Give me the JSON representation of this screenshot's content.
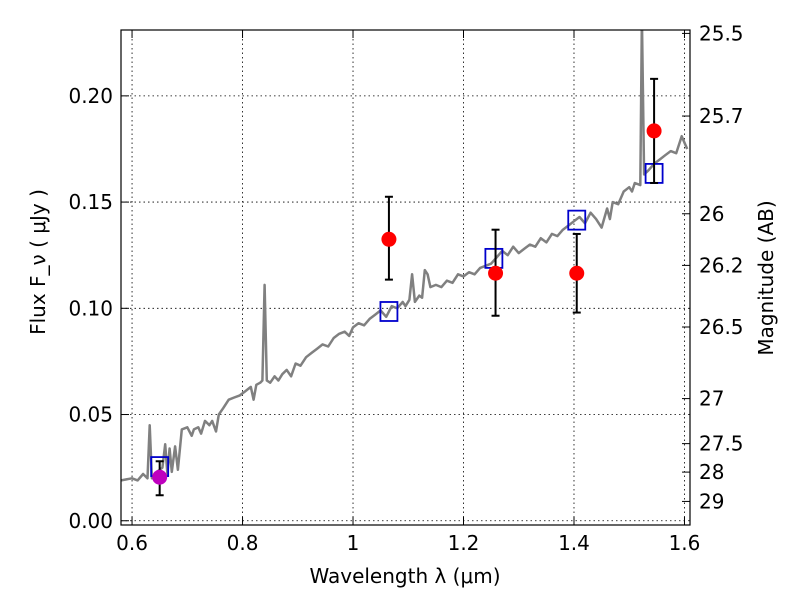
{
  "chart_data": {
    "type": "scatter",
    "xlabel": "Wavelength  λ (μm)",
    "ylabel_left": "Flux  F_ν  ( μJy )",
    "ylabel_right": "Magnitude (AB)",
    "xlim": [
      0.58,
      1.61
    ],
    "ylim": [
      -0.002,
      0.231
    ],
    "grid": true,
    "x_ticks": [
      0.6,
      0.8,
      1.0,
      1.2,
      1.4,
      1.6
    ],
    "x_tick_labels": [
      "0.6",
      "0.8",
      "1",
      "1.2",
      "1.4",
      "1.6"
    ],
    "y_ticks": [
      0.0,
      0.05,
      0.1,
      0.15,
      0.2
    ],
    "y_tick_labels": [
      "0.00",
      "0.05",
      "0.10",
      "0.15",
      "0.20"
    ],
    "right_ticks": [
      {
        "flux": 0.2294,
        "label": "25.5"
      },
      {
        "flux": 0.1905,
        "label": "25.7"
      },
      {
        "flux": 0.1445,
        "label": "26"
      },
      {
        "flux": 0.1202,
        "label": "26.2"
      },
      {
        "flux": 0.0912,
        "label": "26.5"
      },
      {
        "flux": 0.0575,
        "label": "27"
      },
      {
        "flux": 0.0363,
        "label": "27.5"
      },
      {
        "flux": 0.0229,
        "label": "28"
      },
      {
        "flux": 0.0091,
        "label": "29"
      }
    ],
    "colors": {
      "model_spectrum": "#808080",
      "model_photometry": "#0000cc",
      "observed": "#ff0000",
      "observed_special": "#bf00bf",
      "errorbar": "#000000"
    },
    "series": [
      {
        "kind": "line",
        "points": [
          [
            0.58,
            0.019
          ],
          [
            0.6,
            0.02
          ],
          [
            0.61,
            0.019
          ],
          [
            0.62,
            0.022
          ],
          [
            0.628,
            0.02
          ],
          [
            0.632,
            0.045
          ],
          [
            0.636,
            0.02
          ],
          [
            0.645,
            0.023
          ],
          [
            0.655,
            0.025
          ],
          [
            0.66,
            0.036
          ],
          [
            0.664,
            0.022
          ],
          [
            0.668,
            0.034
          ],
          [
            0.672,
            0.023
          ],
          [
            0.678,
            0.035
          ],
          [
            0.683,
            0.024
          ],
          [
            0.69,
            0.043
          ],
          [
            0.7,
            0.044
          ],
          [
            0.708,
            0.04
          ],
          [
            0.712,
            0.043
          ],
          [
            0.72,
            0.044
          ],
          [
            0.725,
            0.041
          ],
          [
            0.732,
            0.047
          ],
          [
            0.74,
            0.045
          ],
          [
            0.745,
            0.047
          ],
          [
            0.752,
            0.042
          ],
          [
            0.757,
            0.05
          ],
          [
            0.765,
            0.053
          ],
          [
            0.775,
            0.057
          ],
          [
            0.785,
            0.058
          ],
          [
            0.795,
            0.059
          ],
          [
            0.805,
            0.061
          ],
          [
            0.815,
            0.063
          ],
          [
            0.82,
            0.057
          ],
          [
            0.825,
            0.064
          ],
          [
            0.832,
            0.065
          ],
          [
            0.836,
            0.066
          ],
          [
            0.84,
            0.111
          ],
          [
            0.844,
            0.066
          ],
          [
            0.85,
            0.065
          ],
          [
            0.858,
            0.068
          ],
          [
            0.865,
            0.066
          ],
          [
            0.872,
            0.069
          ],
          [
            0.88,
            0.071
          ],
          [
            0.888,
            0.068
          ],
          [
            0.896,
            0.074
          ],
          [
            0.905,
            0.073
          ],
          [
            0.915,
            0.077
          ],
          [
            0.925,
            0.079
          ],
          [
            0.935,
            0.081
          ],
          [
            0.945,
            0.083
          ],
          [
            0.955,
            0.082
          ],
          [
            0.965,
            0.086
          ],
          [
            0.975,
            0.088
          ],
          [
            0.985,
            0.089
          ],
          [
            0.993,
            0.087
          ],
          [
            1.0,
            0.091
          ],
          [
            1.01,
            0.093
          ],
          [
            1.02,
            0.092
          ],
          [
            1.03,
            0.095
          ],
          [
            1.04,
            0.097
          ],
          [
            1.05,
            0.099
          ],
          [
            1.06,
            0.096
          ],
          [
            1.07,
            0.101
          ],
          [
            1.08,
            0.1
          ],
          [
            1.09,
            0.103
          ],
          [
            1.095,
            0.101
          ],
          [
            1.102,
            0.104
          ],
          [
            1.107,
            0.116
          ],
          [
            1.112,
            0.103
          ],
          [
            1.12,
            0.106
          ],
          [
            1.125,
            0.105
          ],
          [
            1.13,
            0.118
          ],
          [
            1.135,
            0.116
          ],
          [
            1.14,
            0.11
          ],
          [
            1.15,
            0.111
          ],
          [
            1.16,
            0.11
          ],
          [
            1.17,
            0.113
          ],
          [
            1.18,
            0.112
          ],
          [
            1.19,
            0.116
          ],
          [
            1.2,
            0.115
          ],
          [
            1.21,
            0.117
          ],
          [
            1.22,
            0.116
          ],
          [
            1.23,
            0.119
          ],
          [
            1.24,
            0.12
          ],
          [
            1.25,
            0.121
          ],
          [
            1.26,
            0.124
          ],
          [
            1.27,
            0.127
          ],
          [
            1.28,
            0.125
          ],
          [
            1.29,
            0.129
          ],
          [
            1.3,
            0.126
          ],
          [
            1.31,
            0.128
          ],
          [
            1.32,
            0.13
          ],
          [
            1.33,
            0.129
          ],
          [
            1.34,
            0.133
          ],
          [
            1.35,
            0.131
          ],
          [
            1.36,
            0.135
          ],
          [
            1.37,
            0.134
          ],
          [
            1.38,
            0.137
          ],
          [
            1.39,
            0.139
          ],
          [
            1.4,
            0.141
          ],
          [
            1.41,
            0.143
          ],
          [
            1.42,
            0.14
          ],
          [
            1.43,
            0.145
          ],
          [
            1.44,
            0.142
          ],
          [
            1.45,
            0.138
          ],
          [
            1.46,
            0.147
          ],
          [
            1.465,
            0.142
          ],
          [
            1.47,
            0.15
          ],
          [
            1.48,
            0.149
          ],
          [
            1.49,
            0.155
          ],
          [
            1.5,
            0.157
          ],
          [
            1.505,
            0.155
          ],
          [
            1.51,
            0.159
          ],
          [
            1.52,
            0.158
          ],
          [
            1.523,
            0.237
          ],
          [
            1.527,
            0.163
          ],
          [
            1.535,
            0.165
          ],
          [
            1.545,
            0.168
          ],
          [
            1.555,
            0.17
          ],
          [
            1.565,
            0.172
          ],
          [
            1.575,
            0.174
          ],
          [
            1.585,
            0.173
          ],
          [
            1.595,
            0.181
          ],
          [
            1.605,
            0.175
          ]
        ]
      },
      {
        "kind": "square",
        "x": [
          0.65,
          1.065,
          1.255,
          1.405,
          1.545
        ],
        "y": [
          0.0255,
          0.0985,
          0.1235,
          0.1415,
          0.1635
        ]
      },
      {
        "kind": "errorbar",
        "x": [
          0.65,
          1.065,
          1.258,
          1.405,
          1.545
        ],
        "y": [
          0.0205,
          0.1325,
          0.1165,
          0.1165,
          0.1835
        ],
        "yerr_low": [
          0.0085,
          0.019,
          0.02,
          0.0185,
          0.0245
        ],
        "yerr_high": [
          0.0075,
          0.02,
          0.0205,
          0.0185,
          0.0245
        ]
      },
      {
        "kind": "circle",
        "x": [
          1.065,
          1.258,
          1.405,
          1.545
        ],
        "y": [
          0.1325,
          0.1165,
          0.1165,
          0.1835
        ],
        "color": "observed"
      },
      {
        "kind": "circle",
        "x": [
          0.65
        ],
        "y": [
          0.0205
        ],
        "color": "observed_special"
      }
    ]
  }
}
